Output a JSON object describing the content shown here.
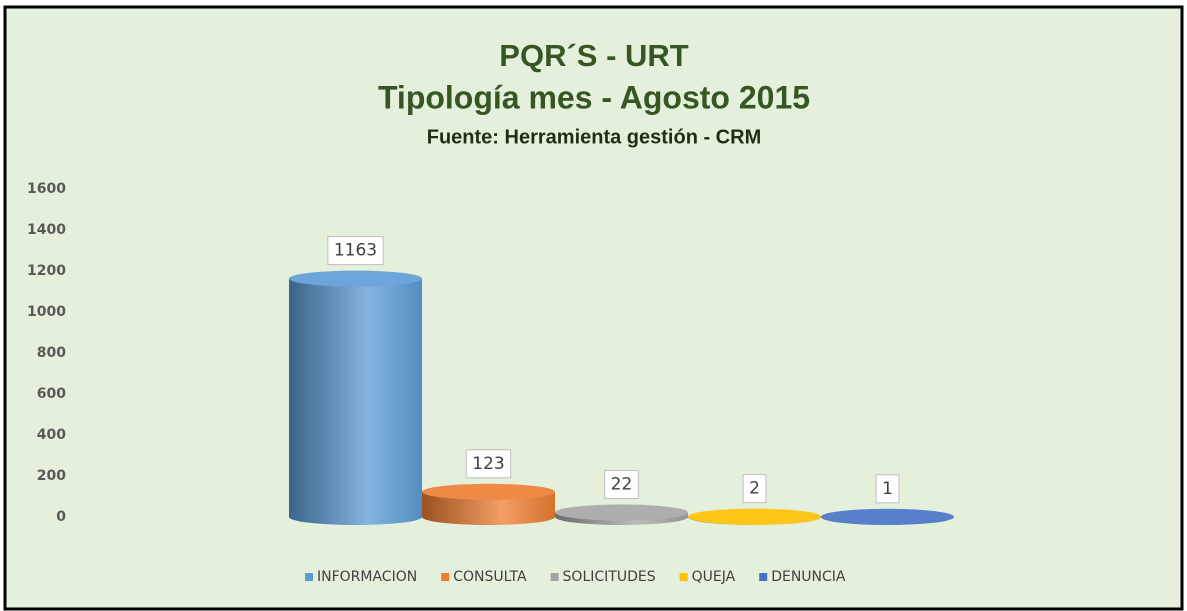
{
  "chart_data": {
    "type": "bar",
    "title": "PQR´S - URT",
    "subtitle": "Tipología mes - Agosto 2015",
    "source": "Fuente: Herramienta gestión - CRM",
    "categories": [
      null
    ],
    "series": [
      {
        "name": "INFORMACION",
        "color": "#5b9bd5",
        "values": [
          1163
        ]
      },
      {
        "name": "CONSULTA",
        "color": "#ed7d31",
        "values": [
          123
        ]
      },
      {
        "name": "SOLICITUDES",
        "color": "#a5a5a5",
        "values": [
          22
        ]
      },
      {
        "name": "QUEJA",
        "color": "#ffc000",
        "values": [
          2
        ]
      },
      {
        "name": "DENUNCIA",
        "color": "#4472c4",
        "values": [
          1
        ]
      }
    ],
    "ylim": [
      0,
      1600
    ],
    "yticks": [
      0,
      200,
      400,
      600,
      800,
      1000,
      1200,
      1400,
      1600
    ],
    "grid": false,
    "legend": "bottom"
  }
}
